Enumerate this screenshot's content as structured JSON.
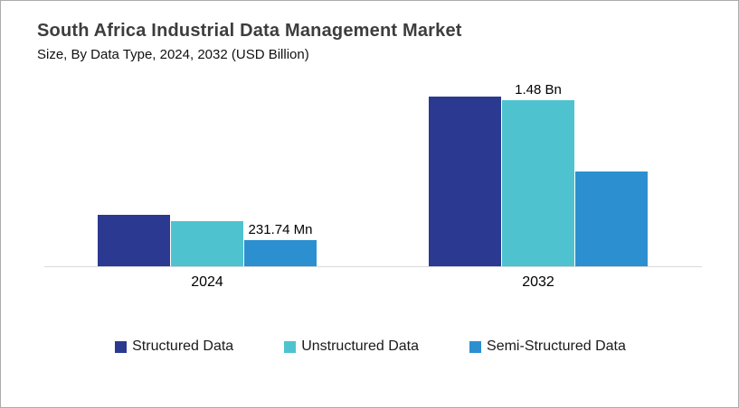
{
  "header": {
    "title": "South Africa Industrial Data Management Market",
    "subtitle": "Size, By Data Type, 2024, 2032 (USD Billion)"
  },
  "colors": {
    "structured": "#2B3990",
    "unstructured": "#4EC3CF",
    "semi_structured": "#2C90D0",
    "axis_line": "#D9D9D9",
    "title_text": "#3D3D3D",
    "border": "#ABABAB"
  },
  "chart_data": {
    "type": "bar",
    "title": "South Africa Industrial Data Management Market",
    "subtitle": "Size, By Data Type, 2024, 2032 (USD Billion)",
    "unit": "USD Billion",
    "categories": [
      "2024",
      "2032"
    ],
    "series": [
      {
        "name": "Structured Data",
        "color": "#2B3990",
        "values": [
          0.46,
          1.52
        ],
        "labels": [
          "",
          ""
        ]
      },
      {
        "name": "Unstructured Data",
        "color": "#4EC3CF",
        "values": [
          0.4,
          1.48
        ],
        "labels": [
          "",
          "1.48 Bn"
        ]
      },
      {
        "name": "Semi-Structured Data",
        "color": "#2C90D0",
        "values": [
          0.23174,
          0.85
        ],
        "labels": [
          "231.74 Mn",
          ""
        ]
      }
    ],
    "annotations": [
      {
        "text": "231.74 Mn",
        "series": "Semi-Structured Data",
        "category": "2024"
      },
      {
        "text": "1.48 Bn",
        "series": "Unstructured Data",
        "category": "2032"
      }
    ],
    "ylim": [
      0,
      1.6
    ],
    "grid": false,
    "axis_line": true,
    "legend_position": "bottom"
  }
}
